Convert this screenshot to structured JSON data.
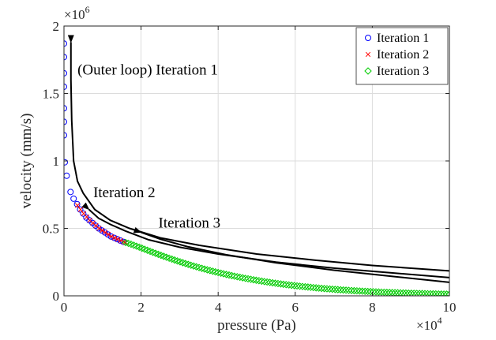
{
  "chart_data": {
    "type": "scatter",
    "title": "",
    "xlabel": "pressure (Pa)",
    "ylabel": "velocity (mm/s)",
    "xlim": [
      0,
      100000
    ],
    "ylim": [
      0,
      2000000
    ],
    "x_ticks": [
      0,
      20000,
      40000,
      60000,
      80000,
      100000
    ],
    "x_tick_labels": [
      "0",
      "2",
      "4",
      "6",
      "8",
      "10"
    ],
    "y_ticks": [
      0,
      500000,
      1000000,
      1500000,
      2000000
    ],
    "y_tick_labels": [
      "0",
      "0.5",
      "1",
      "1.5",
      "2"
    ],
    "x_exponent": "×10",
    "x_exponent_power": "4",
    "y_exponent": "×10",
    "y_exponent_power": "6",
    "grid": true,
    "legend_position": "top-right",
    "colors": {
      "iteration1": "#0000ff",
      "iteration2": "#ff0000",
      "iteration3": "#00cc00",
      "curves": "#000000"
    },
    "series": [
      {
        "name": "Iteration 1",
        "marker": "circle",
        "points": [
          [
            0,
            1870000
          ],
          [
            0,
            1770000
          ],
          [
            0,
            1650000
          ],
          [
            0,
            1550000
          ],
          [
            0,
            1390000
          ],
          [
            0,
            1290000
          ],
          [
            0,
            1190000
          ],
          [
            200,
            990000
          ],
          [
            700,
            890000
          ],
          [
            1700,
            770000
          ],
          [
            2500,
            720000
          ],
          [
            3400,
            680000
          ],
          [
            4200,
            640000
          ],
          [
            5000,
            610000
          ],
          [
            5800,
            580000
          ],
          [
            6600,
            560000
          ],
          [
            7400,
            540000
          ],
          [
            8200,
            520000
          ],
          [
            9000,
            500000
          ],
          [
            9800,
            485000
          ],
          [
            10600,
            470000
          ],
          [
            11400,
            455000
          ],
          [
            12200,
            440000
          ],
          [
            13000,
            430000
          ],
          [
            13800,
            420000
          ],
          [
            14600,
            410000
          ],
          [
            15400,
            400000
          ]
        ]
      },
      {
        "name": "Iteration 2",
        "marker": "x",
        "points": [
          [
            3500,
            670000
          ],
          [
            4300,
            640000
          ],
          [
            5100,
            610000
          ],
          [
            5900,
            585000
          ],
          [
            6700,
            560000
          ],
          [
            7500,
            540000
          ],
          [
            8300,
            520000
          ],
          [
            9100,
            500000
          ],
          [
            9900,
            485000
          ],
          [
            10700,
            470000
          ],
          [
            11500,
            455000
          ],
          [
            12300,
            440000
          ],
          [
            13100,
            430000
          ],
          [
            13900,
            420000
          ],
          [
            14700,
            410000
          ],
          [
            15500,
            400000
          ],
          [
            16000,
            395000
          ]
        ]
      },
      {
        "name": "Iteration 3",
        "marker": "diamond",
        "x_range": [
          16000,
          100000
        ],
        "count": 120,
        "y_start": 395000,
        "y_end": 12000
      }
    ],
    "curves": [
      {
        "name": "Iteration 1",
        "points": [
          [
            1800,
            1880000
          ],
          [
            1800,
            1600000
          ],
          [
            2000,
            1300000
          ],
          [
            2500,
            1000000
          ],
          [
            3500,
            850000
          ],
          [
            5000,
            760000
          ],
          [
            8000,
            640000
          ],
          [
            12000,
            560000
          ],
          [
            17000,
            500000
          ],
          [
            25000,
            430000
          ],
          [
            35000,
            375000
          ],
          [
            50000,
            310000
          ],
          [
            65000,
            265000
          ],
          [
            80000,
            225000
          ],
          [
            100000,
            185000
          ]
        ]
      },
      {
        "name": "Iteration 2",
        "points": [
          [
            6500,
            640000
          ],
          [
            9000,
            575000
          ],
          [
            12000,
            530000
          ],
          [
            16000,
            480000
          ],
          [
            22000,
            415000
          ],
          [
            30000,
            360000
          ],
          [
            40000,
            310000
          ],
          [
            55000,
            250000
          ],
          [
            70000,
            205000
          ],
          [
            85000,
            170000
          ],
          [
            100000,
            135000
          ]
        ]
      },
      {
        "name": "Iteration 3",
        "points": [
          [
            20000,
            470000
          ],
          [
            25000,
            420000
          ],
          [
            32000,
            365000
          ],
          [
            42000,
            305000
          ],
          [
            55000,
            245000
          ],
          [
            70000,
            190000
          ],
          [
            85000,
            145000
          ],
          [
            100000,
            100000
          ]
        ]
      }
    ],
    "annotations": [
      {
        "text": "(Outer loop) Iteration 1",
        "x": 3500,
        "y": 1640000
      },
      {
        "text": "Iteration 2",
        "x": 7600,
        "y": 730000
      },
      {
        "text": "Iteration 3",
        "x": 24500,
        "y": 505000
      }
    ]
  }
}
